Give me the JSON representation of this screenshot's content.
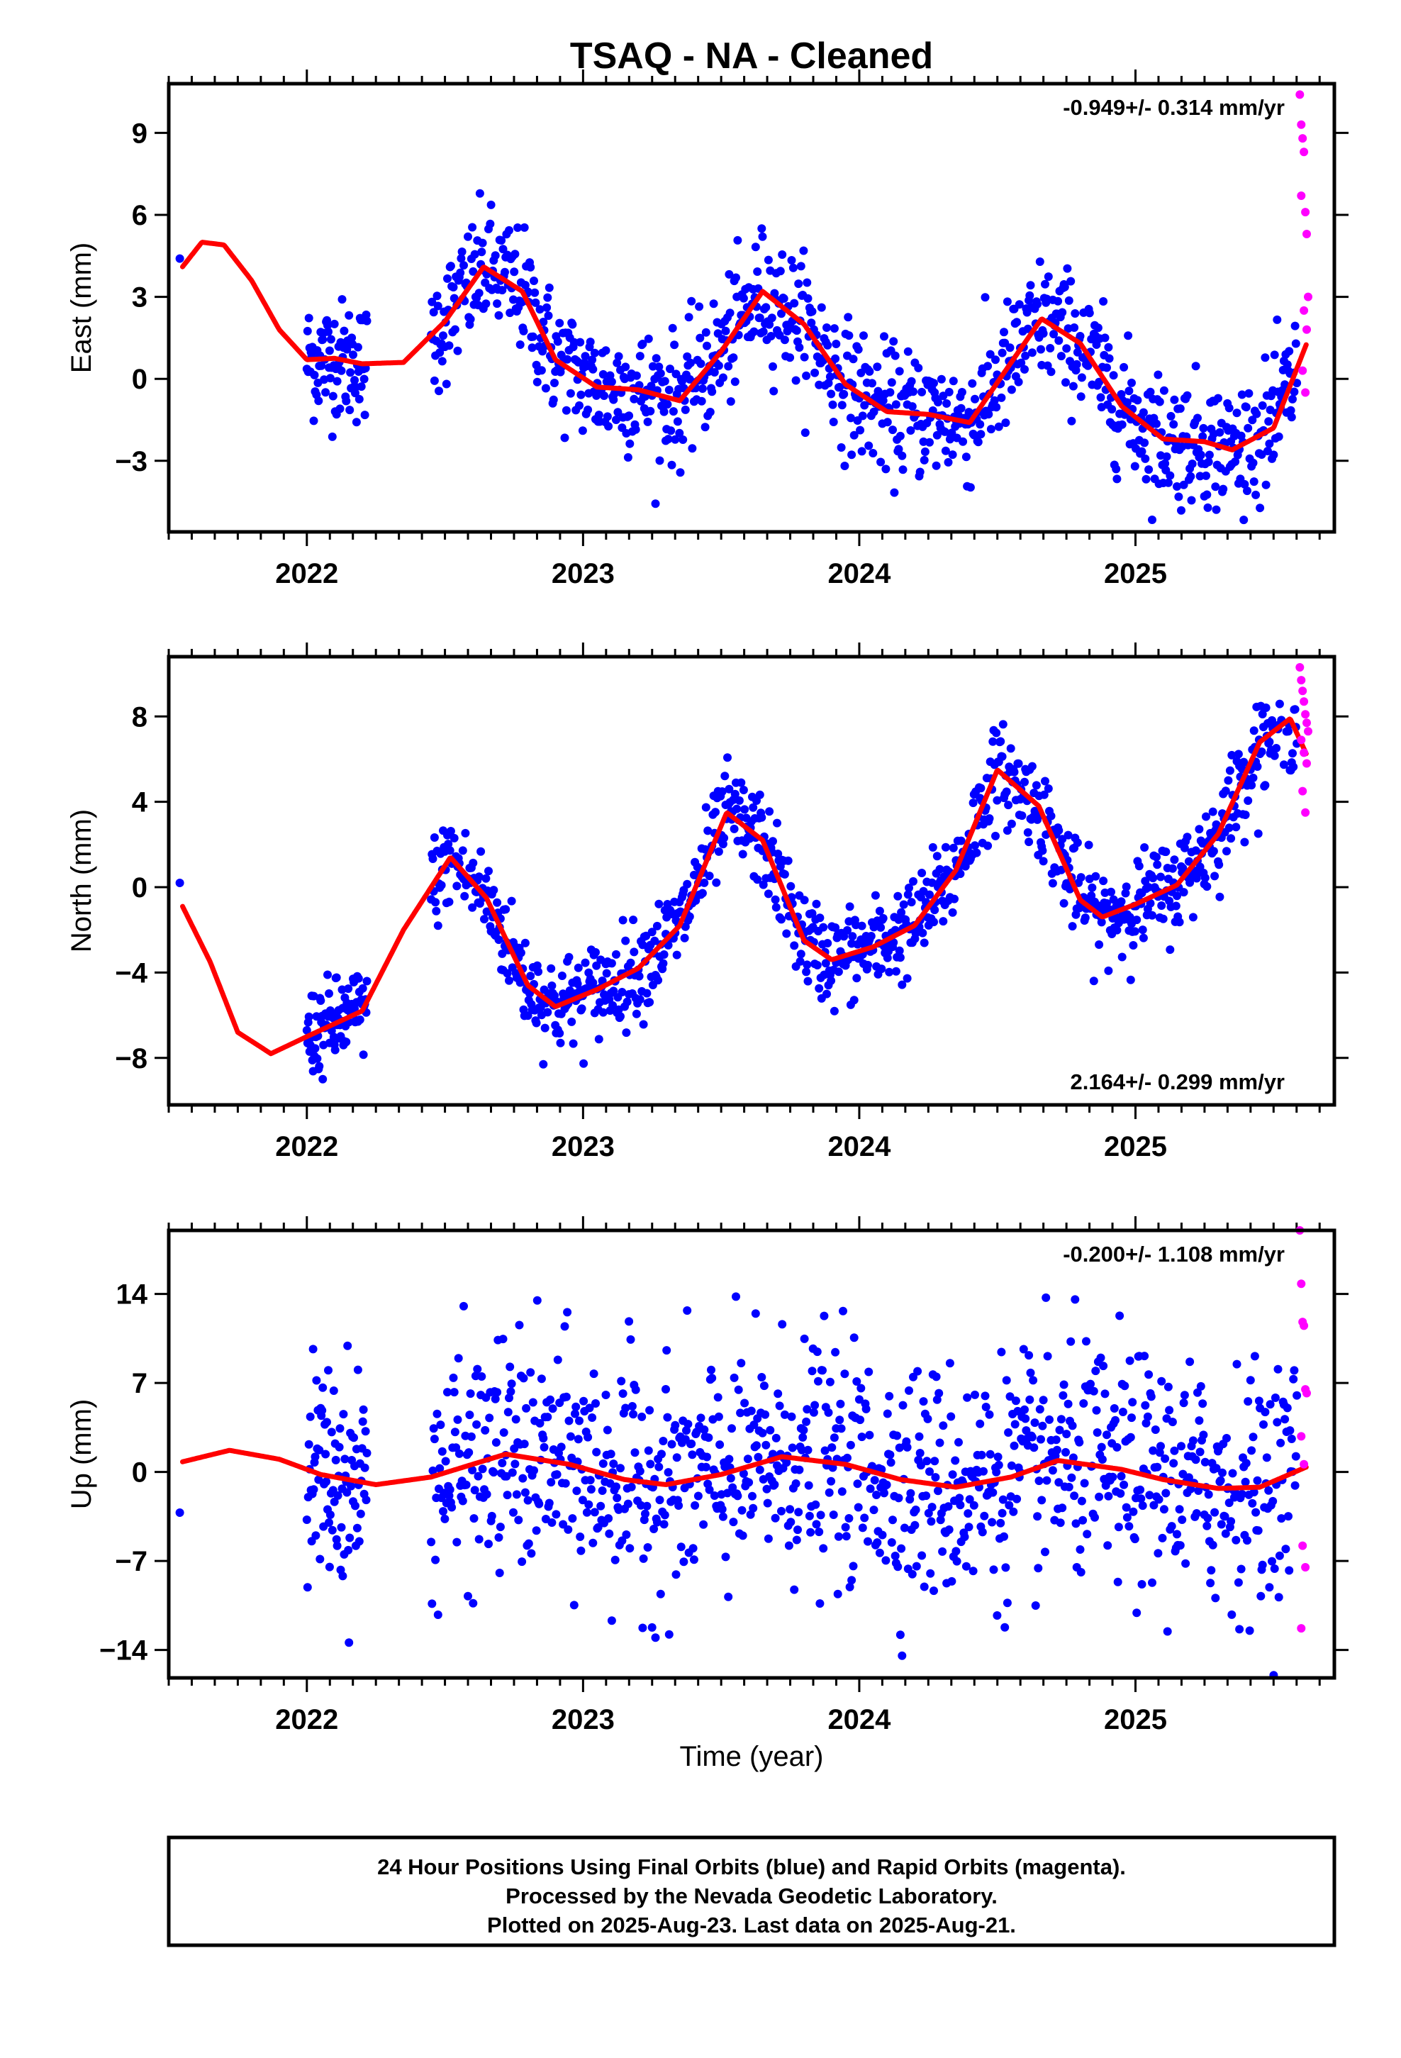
{
  "chart_data": {
    "type": "scatter",
    "title": "TSAQ  - NA - Cleaned",
    "xlabel": "Time (year)",
    "xlim": [
      2021.5,
      2025.72
    ],
    "x_ticks": [
      2022,
      2023,
      2024,
      2025
    ],
    "legend_position": "bottom",
    "colors": {
      "final_orbits": "#0000ff",
      "rapid_orbits": "#ff00ff",
      "model_fit": "#ff0000"
    },
    "panels": [
      {
        "ylabel": "East (mm)",
        "ylim": [
          -5.6,
          10.8
        ],
        "yticks": [
          9,
          6,
          3,
          0,
          -3
        ],
        "ytick_labels": [
          "9",
          "6",
          "3",
          "0",
          "−3"
        ],
        "rate": "-0.949+/- 0.314 mm/yr",
        "rate_position": "top-right",
        "model": {
          "trend": -0.949,
          "offset": 1.5,
          "amp": 2.6,
          "phase_peak": 0.63,
          "x": [
            2021.55,
            2021.62,
            2021.7,
            2021.8,
            2021.9,
            2022.0,
            2022.1,
            2022.2,
            2022.35,
            2022.5,
            2022.64,
            2022.78,
            2022.9,
            2023.05,
            2023.2,
            2023.35,
            2023.5,
            2023.65,
            2023.8,
            2023.95,
            2024.1,
            2024.25,
            2024.4,
            2024.55,
            2024.66,
            2024.8,
            2024.95,
            2025.1,
            2025.25,
            2025.35,
            2025.5,
            2025.62
          ],
          "y": [
            4.1,
            5.0,
            4.9,
            3.6,
            1.8,
            0.7,
            0.75,
            0.55,
            0.6,
            2.1,
            4.1,
            3.2,
            0.7,
            -0.3,
            -0.4,
            -0.8,
            1.0,
            3.2,
            2.0,
            -0.2,
            -1.2,
            -1.3,
            -1.6,
            0.6,
            2.2,
            1.3,
            -1.0,
            -2.2,
            -2.3,
            -2.6,
            -1.8,
            1.3
          ]
        },
        "rapid": {
          "x": [
            2025.595,
            2025.6,
            2025.605,
            2025.61,
            2025.615,
            2025.62,
            2025.625,
            2025.6,
            2025.61,
            2025.62,
            2025.605,
            2025.615
          ],
          "y": [
            10.4,
            9.3,
            8.8,
            8.3,
            6.1,
            5.3,
            3.0,
            6.7,
            2.5,
            1.8,
            0.3,
            -0.5
          ]
        }
      },
      {
        "ylabel": "North (mm)",
        "ylim": [
          -10.2,
          10.8
        ],
        "yticks": [
          8,
          4,
          0,
          -4,
          -8
        ],
        "ytick_labels": [
          "8",
          "4",
          "0",
          "−4",
          "−8"
        ],
        "rate": "2.164+/- 0.299 mm/yr",
        "rate_position": "bottom-right",
        "model": {
          "trend": 2.164,
          "offset": 0.0,
          "amp": 3.2,
          "phase_peak": 0.52,
          "x": [
            2021.55,
            2021.65,
            2021.75,
            2021.87,
            2022.0,
            2022.2,
            2022.35,
            2022.52,
            2022.65,
            2022.8,
            2022.9,
            2023.05,
            2023.2,
            2023.35,
            2023.52,
            2023.65,
            2023.8,
            2023.9,
            2024.05,
            2024.2,
            2024.35,
            2024.5,
            2024.65,
            2024.8,
            2024.88,
            2025.0,
            2025.15,
            2025.3,
            2025.45,
            2025.56,
            2025.62
          ],
          "y": [
            -0.9,
            -3.5,
            -6.8,
            -7.8,
            -7.0,
            -5.8,
            -2.0,
            1.4,
            -0.5,
            -4.6,
            -5.6,
            -4.8,
            -3.8,
            -1.8,
            3.5,
            2.2,
            -2.5,
            -3.4,
            -2.8,
            -1.8,
            0.8,
            5.5,
            3.8,
            -0.6,
            -1.4,
            -0.8,
            0.1,
            2.5,
            6.8,
            7.9,
            6.2
          ]
        },
        "rapid": {
          "x": [
            2025.595,
            2025.6,
            2025.605,
            2025.61,
            2025.615,
            2025.62,
            2025.625,
            2025.6,
            2025.61,
            2025.62,
            2025.605,
            2025.615
          ],
          "y": [
            10.3,
            9.7,
            9.2,
            8.7,
            8.1,
            7.7,
            7.3,
            6.9,
            6.3,
            5.8,
            4.5,
            3.5
          ]
        }
      },
      {
        "ylabel": "Up (mm)",
        "ylim": [
          -16.2,
          19.0
        ],
        "yticks": [
          14,
          7,
          0,
          -7,
          -14
        ],
        "ytick_labels": [
          "14",
          "7",
          "0",
          "−7",
          "−14"
        ],
        "rate": "-0.200+/- 1.108 mm/yr",
        "rate_position": "top-right",
        "model": {
          "trend": -0.2,
          "offset": 0.0,
          "amp": 1.2,
          "phase_peak": 0.72,
          "x": [
            2021.55,
            2021.72,
            2021.9,
            2022.05,
            2022.25,
            2022.45,
            2022.72,
            2022.95,
            2023.15,
            2023.3,
            2023.5,
            2023.72,
            2023.95,
            2024.15,
            2024.35,
            2024.55,
            2024.72,
            2024.95,
            2025.1,
            2025.3,
            2025.45,
            2025.62
          ],
          "y": [
            0.8,
            1.7,
            1.0,
            -0.2,
            -1.0,
            -0.4,
            1.4,
            0.6,
            -0.6,
            -1.0,
            -0.2,
            1.2,
            0.6,
            -0.6,
            -1.2,
            -0.4,
            0.9,
            0.2,
            -0.6,
            -1.3,
            -1.2,
            0.4
          ]
        },
        "rapid": {
          "x": [
            2025.595,
            2025.6,
            2025.605,
            2025.61,
            2025.615,
            2025.62,
            2025.6,
            2025.61,
            2025.605,
            2025.615,
            2025.6
          ],
          "y": [
            19.0,
            14.8,
            11.8,
            11.5,
            6.5,
            6.2,
            2.8,
            0.6,
            -5.8,
            -7.5,
            -12.3
          ]
        }
      }
    ],
    "legend_lines": [
      "24 Hour Positions Using Final Orbits (blue) and Rapid Orbits (magenta).",
      "Processed by the Nevada Geodetic Laboratory.",
      "Plotted on 2025-Aug-23. Last data on 2025-Aug-21."
    ]
  }
}
